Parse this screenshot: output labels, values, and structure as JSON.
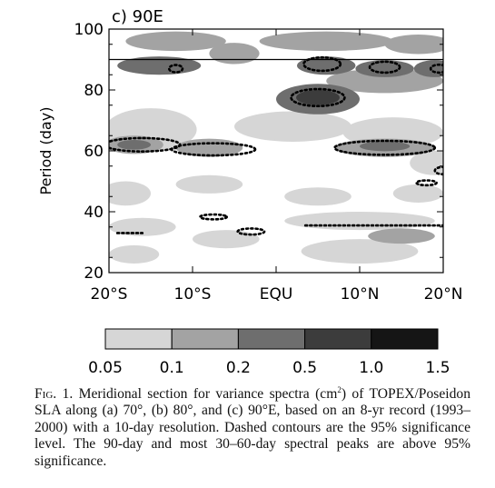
{
  "chart_data": {
    "type": "heatmap",
    "panel_label": "c) 90E",
    "ylabel": "Period (day)",
    "ylim": [
      20,
      100
    ],
    "yticks": [
      20,
      40,
      60,
      80,
      100
    ],
    "xlim": [
      -20,
      20
    ],
    "xticks": [
      {
        "value": -20,
        "label": "20°S"
      },
      {
        "value": -10,
        "label": "10°S"
      },
      {
        "value": 0,
        "label": "EQU"
      },
      {
        "value": 10,
        "label": "10°N"
      },
      {
        "value": 20,
        "label": "20°N"
      }
    ],
    "reference_line_period": 90,
    "colorbar": {
      "levels": [
        "0.05",
        "0.1",
        "0.2",
        "0.5",
        "1.0",
        "1.5"
      ],
      "colors": [
        "#d6d6d6",
        "#a3a3a3",
        "#6e6e6e",
        "#3c3c3c",
        "#151515"
      ]
    },
    "variance_blobs": [
      {
        "lat": -12,
        "period": 96,
        "rlat": 6,
        "rper": 3.2,
        "level": 1
      },
      {
        "lat": 6,
        "period": 96,
        "rlat": 8,
        "rper": 3.2,
        "level": 1
      },
      {
        "lat": 17,
        "period": 95,
        "rlat": 4,
        "rper": 3.2,
        "level": 1
      },
      {
        "lat": -5,
        "period": 92,
        "rlat": 3,
        "rper": 3.5,
        "level": 1
      },
      {
        "lat": 13,
        "period": 83,
        "rlat": 7,
        "rper": 4,
        "level": 1
      },
      {
        "lat": -14,
        "period": 88,
        "rlat": 5,
        "rper": 3,
        "level": 2
      },
      {
        "lat": 6,
        "period": 88,
        "rlat": 3.5,
        "rper": 3,
        "level": 2
      },
      {
        "lat": 13,
        "period": 87,
        "rlat": 3.5,
        "rper": 2.8,
        "level": 2
      },
      {
        "lat": 19,
        "period": 87,
        "rlat": 2.5,
        "rper": 2.8,
        "level": 2
      },
      {
        "lat": 5,
        "period": 77,
        "rlat": 5,
        "rper": 5,
        "level": 2
      },
      {
        "lat": 5,
        "period": 77.5,
        "rlat": 2.6,
        "rper": 2.5,
        "level": 3
      },
      {
        "lat": -15,
        "period": 67,
        "rlat": 5.5,
        "rper": 7,
        "level": 0
      },
      {
        "lat": 2,
        "period": 68,
        "rlat": 7,
        "rper": 5,
        "level": 0
      },
      {
        "lat": 14,
        "period": 66,
        "rlat": 6,
        "rper": 5,
        "level": 0
      },
      {
        "lat": -17,
        "period": 62,
        "rlat": 3.5,
        "rper": 3,
        "level": 1
      },
      {
        "lat": -8,
        "period": 61,
        "rlat": 4,
        "rper": 3,
        "level": 1
      },
      {
        "lat": 13,
        "period": 61,
        "rlat": 6,
        "rper": 3,
        "level": 1
      },
      {
        "lat": -17,
        "period": 62,
        "rlat": 2,
        "rper": 1.6,
        "level": 2
      },
      {
        "lat": 13,
        "period": 61.5,
        "rlat": 3,
        "rper": 1.6,
        "level": 2
      },
      {
        "lat": 19,
        "period": 56,
        "rlat": 3,
        "rper": 4,
        "level": 0
      },
      {
        "lat": -18,
        "period": 46,
        "rlat": 3,
        "rper": 4,
        "level": 0
      },
      {
        "lat": -8,
        "period": 49,
        "rlat": 4,
        "rper": 3,
        "level": 0
      },
      {
        "lat": 5,
        "period": 45,
        "rlat": 4,
        "rper": 3,
        "level": 0
      },
      {
        "lat": 17,
        "period": 46,
        "rlat": 3,
        "rper": 3,
        "level": 0
      },
      {
        "lat": 10,
        "period": 37,
        "rlat": 9,
        "rper": 3,
        "level": 0
      },
      {
        "lat": -16,
        "period": 35,
        "rlat": 4,
        "rper": 3,
        "level": 0
      },
      {
        "lat": -6,
        "period": 31,
        "rlat": 4,
        "rper": 3,
        "level": 0
      },
      {
        "lat": 10,
        "period": 27,
        "rlat": 7,
        "rper": 4,
        "level": 0
      },
      {
        "lat": -17,
        "period": 26,
        "rlat": 3,
        "rper": 3,
        "level": 0
      },
      {
        "lat": 15,
        "period": 32,
        "rlat": 4,
        "rper": 2.5,
        "level": 1
      }
    ],
    "significance_contours": [
      {
        "lat": -16,
        "period": 62,
        "rlat": 4.5,
        "rper": 2.2
      },
      {
        "lat": -7.5,
        "period": 60.5,
        "rlat": 5,
        "rper": 2
      },
      {
        "lat": 13,
        "period": 61,
        "rlat": 6,
        "rper": 2.3
      },
      {
        "lat": 5,
        "period": 77.5,
        "rlat": 3.2,
        "rper": 2.8
      },
      {
        "lat": 5.5,
        "period": 88.5,
        "rlat": 2.2,
        "rper": 2.2
      },
      {
        "lat": 13,
        "period": 87.5,
        "rlat": 1.8,
        "rper": 1.8
      },
      {
        "lat": 19.5,
        "period": 87,
        "rlat": 1,
        "rper": 1.3
      },
      {
        "lat": -12,
        "period": 87,
        "rlat": 0.8,
        "rper": 1.2
      },
      {
        "lat": -7.5,
        "period": 38.3,
        "rlat": 1.6,
        "rper": 0.8
      },
      {
        "lat": -3,
        "period": 33.5,
        "rlat": 1.6,
        "rper": 1
      },
      {
        "lat": 18,
        "period": 49.5,
        "rlat": 1.2,
        "rper": 0.8
      },
      {
        "lat": 20,
        "period": 53.5,
        "rlat": 1,
        "rper": 1.2
      }
    ],
    "significance_lines": [
      {
        "lat1": 3.5,
        "lat2": 20,
        "period": 35.5
      },
      {
        "lat1": -19,
        "lat2": -16,
        "period": 33
      }
    ]
  },
  "caption": {
    "lead": "Fig. 1.",
    "text_before_sup": " Meridional section for variance spectra (cm",
    "sup": "2",
    "text_after_sup": ") of TOPEX/Poseidon SLA along (a) 70°, (b) 80°, and (c) 90°E, based on an 8-yr record (1993–2000) with a 10-day resolution. Dashed contours are the 95% significance level. The 90-day and most 30–60-day spectral peaks are above 95% significance."
  }
}
